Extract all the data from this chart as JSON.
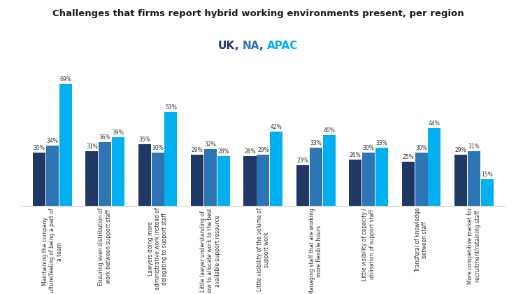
{
  "title": "Challenges that firms report hybrid working environments present, per region",
  "subtitle_parts": [
    {
      "text": "UK",
      "color": "#1f3864"
    },
    {
      "text": ", ",
      "color": "#1f3864"
    },
    {
      "text": "NA",
      "color": "#2e75b6"
    },
    {
      "text": ", ",
      "color": "#1f3864"
    },
    {
      "text": "APAC",
      "color": "#00b0f0"
    }
  ],
  "categories": [
    "Maintaining the company\nculture/feeling of being a part of\na team",
    "Ensuring even distribution of\nwork between support staff",
    "Lawyers doing more\nadministrative work instead of\ndelegating to support staff",
    "Little lawyer understanding of\nhow to allocate work to the best\navailable support resource",
    "Little visibility of the volume of\nsupport work",
    "Managing staff that are working\nmore flexible hours",
    "Little visibility of capacity /\nutilisation of support staff",
    "Transferal of knowledge\nbetween staff",
    "More competitive market for\nrecruitment/retaining staff"
  ],
  "uk_values": [
    30,
    31,
    35,
    29,
    28,
    23,
    26,
    25,
    29
  ],
  "na_values": [
    34,
    36,
    30,
    32,
    29,
    33,
    30,
    30,
    31
  ],
  "apac_values": [
    69,
    39,
    53,
    28,
    42,
    40,
    33,
    44,
    15
  ],
  "uk_color": "#1f3864",
  "na_color": "#2e75b6",
  "apac_color": "#00b0f0",
  "bg_color": "#ffffff",
  "grid_color": "#b0e8f5",
  "title_fontsize": 9.5,
  "subtitle_fontsize": 11,
  "bar_label_fontsize": 5.5,
  "xlabel_fontsize": 5.5,
  "ylim": [
    0,
    80
  ]
}
